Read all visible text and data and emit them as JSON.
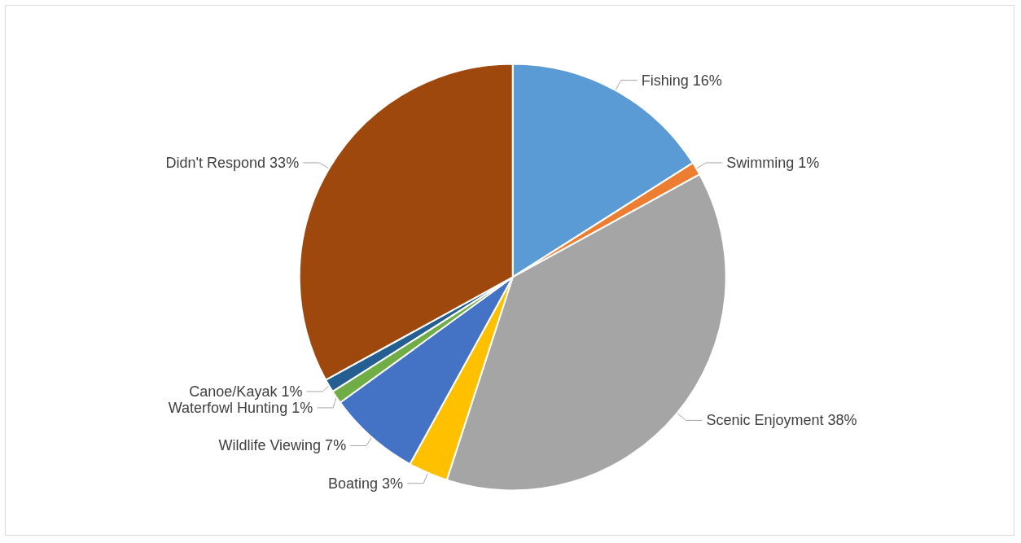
{
  "chart_data": {
    "type": "pie",
    "categories": [
      "Fishing",
      "Swimming",
      "Scenic Enjoyment",
      "Boating",
      "Wildlife Viewing",
      "Waterfowl Hunting",
      "Canoe/Kayak",
      "Didn't Respond"
    ],
    "values": [
      16,
      1,
      38,
      3,
      7,
      1,
      1,
      33
    ],
    "value_labels": [
      "16%",
      "1%",
      "38%",
      "3%",
      "7%",
      "1%",
      "1%",
      "33%"
    ],
    "colors": [
      "#5b9bd5",
      "#ed7d31",
      "#a5a5a5",
      "#ffc000",
      "#4472c4",
      "#70ad47",
      "#255e91",
      "#9e480e"
    ],
    "legend": false
  }
}
